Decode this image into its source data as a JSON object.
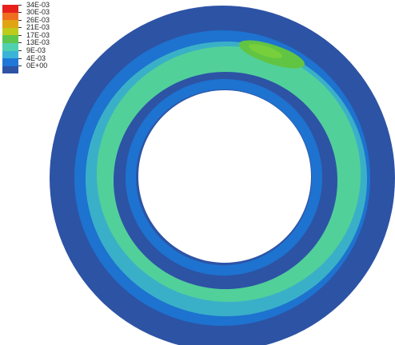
{
  "legend": {
    "labels": [
      "34E-03",
      "30E-03",
      "26E-03",
      "21E-03",
      "17E-03",
      "13E-03",
      "9E-03",
      "4E-03",
      "0E+00"
    ],
    "colors": [
      "#e8201a",
      "#f06d1f",
      "#e0a414",
      "#bfcb1a",
      "#5ec64c",
      "#4fd0ae",
      "#3ab3d8",
      "#1f78d8",
      "#2d53a5"
    ]
  },
  "contour": {
    "base_color": "#2d53a5",
    "band_colors": {
      "level_4E": "#1d73cf",
      "level_9E": "#3ab0c8",
      "level_13E": "#52d09a",
      "level_17E": "#61c442",
      "peak": "#78cf3c"
    },
    "hole_color": "#ffffff"
  }
}
